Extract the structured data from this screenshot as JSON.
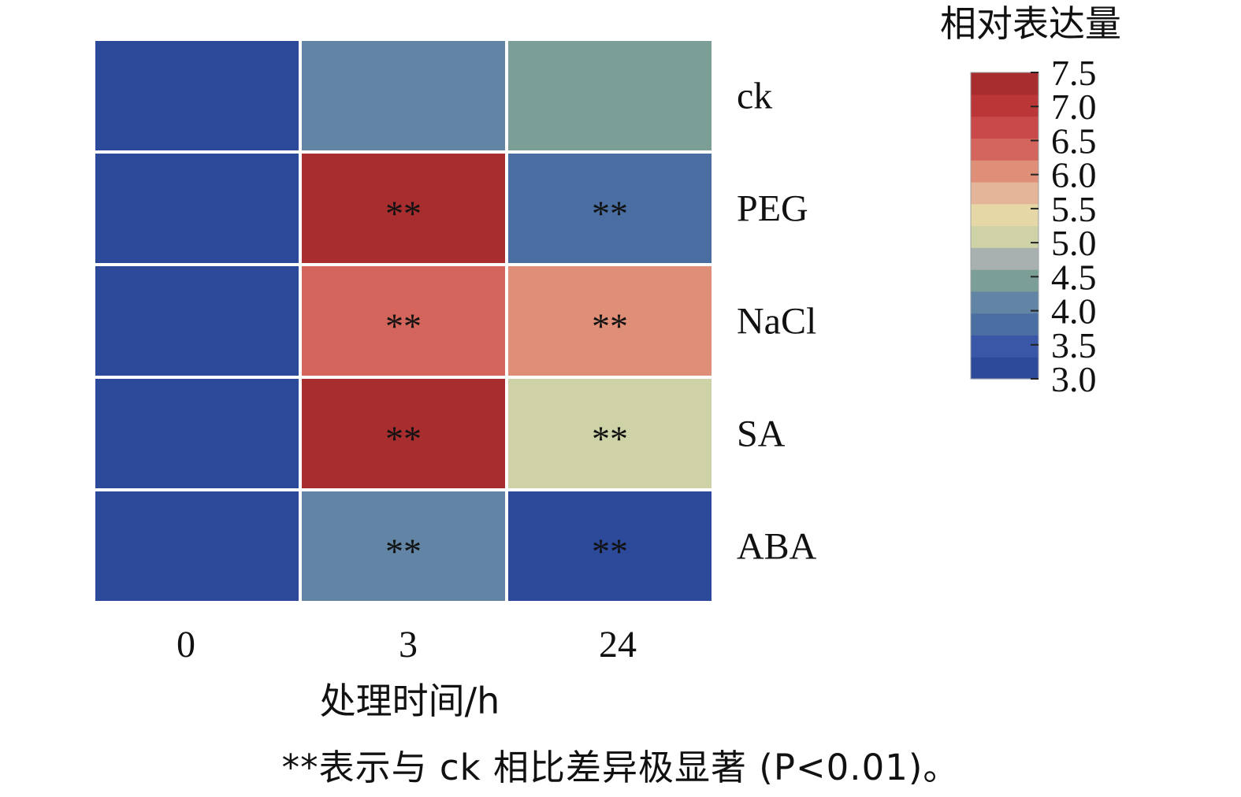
{
  "chart_data": {
    "type": "heatmap",
    "x_categories": [
      "0",
      "3",
      "24"
    ],
    "y_categories": [
      "ck",
      "PEG",
      "NaCl",
      "SA",
      "ABA"
    ],
    "values": [
      [
        3.3,
        4.1,
        4.6
      ],
      [
        3.3,
        7.2,
        3.9
      ],
      [
        3.3,
        6.4,
        6.0
      ],
      [
        3.3,
        7.2,
        5.0
      ],
      [
        3.3,
        4.2,
        3.3
      ]
    ],
    "significance": [
      [
        "",
        "",
        ""
      ],
      [
        "",
        "**",
        "**"
      ],
      [
        "",
        "**",
        "**"
      ],
      [
        "",
        "**",
        "**"
      ],
      [
        "",
        "**",
        "**"
      ]
    ],
    "xlabel": "处理时间/h",
    "colorbar": {
      "title": "相对表达量",
      "min": 3.0,
      "max": 7.5,
      "ticks": [
        "7.5",
        "7.0",
        "6.5",
        "6.0",
        "5.5",
        "5.0",
        "4.5",
        "4.0",
        "3.5",
        "3.0"
      ],
      "colors": [
        "#2d4a9a",
        "#3a56a6",
        "#4a6ea2",
        "#6285a6",
        "#7b9e96",
        "#a9b0b0",
        "#cfd2a6",
        "#e6d8a6",
        "#e4b598",
        "#df8f78",
        "#d4655c",
        "#c9484a",
        "#bb3637",
        "#a72d2e"
      ]
    }
  },
  "note": "**表示与 ck 相比差异极显著 (P<0.01)。"
}
